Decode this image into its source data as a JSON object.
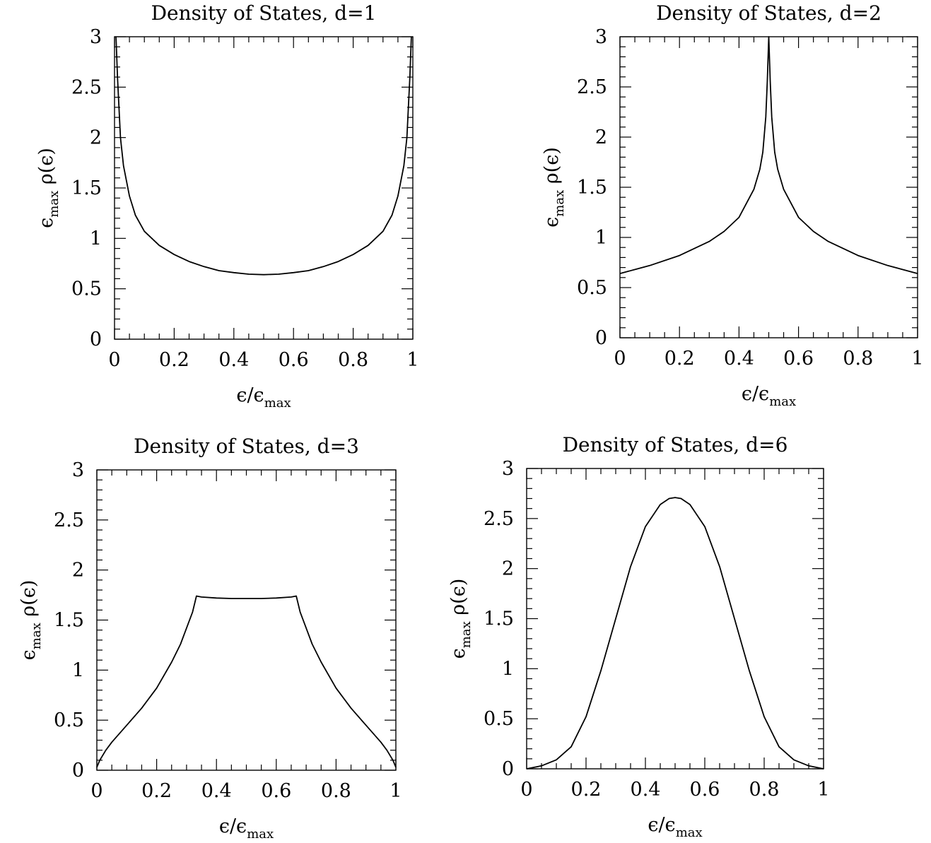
{
  "chart_data": [
    {
      "type": "line",
      "title": "Density of States, d=1",
      "xlabel": "ϵ/ϵmax",
      "ylabel": "ϵmax ρ(ϵ)",
      "xlim": [
        0,
        1
      ],
      "ylim": [
        0,
        3
      ],
      "xticks": [
        "0",
        "0.2",
        "0.4",
        "0.6",
        "0.8",
        "1"
      ],
      "yticks": [
        "0",
        "0.5",
        "1",
        "1.5",
        "2",
        "2.5",
        "3"
      ],
      "series": [
        {
          "x": [
            0.005,
            0.01,
            0.02,
            0.03,
            0.05,
            0.07,
            0.1,
            0.15,
            0.2,
            0.25,
            0.3,
            0.35,
            0.4,
            0.45,
            0.5,
            0.55,
            0.6,
            0.65,
            0.7,
            0.75,
            0.8,
            0.85,
            0.9,
            0.93,
            0.95,
            0.97,
            0.98,
            0.99,
            0.995
          ],
          "y": [
            3.0,
            2.6,
            2.0,
            1.72,
            1.42,
            1.23,
            1.07,
            0.93,
            0.84,
            0.77,
            0.72,
            0.68,
            0.66,
            0.645,
            0.64,
            0.645,
            0.66,
            0.68,
            0.72,
            0.77,
            0.84,
            0.93,
            1.07,
            1.23,
            1.42,
            1.72,
            2.0,
            2.6,
            3.0
          ]
        }
      ]
    },
    {
      "type": "line",
      "title": "Density of States, d=2",
      "xlabel": "ϵ/ϵmax",
      "ylabel": "ϵmax ρ(ϵ)",
      "xlim": [
        0,
        1
      ],
      "ylim": [
        0,
        3
      ],
      "xticks": [
        "0",
        "0.2",
        "0.4",
        "0.6",
        "0.8",
        "1"
      ],
      "yticks": [
        "0",
        "0.5",
        "1",
        "1.5",
        "2",
        "2.5",
        "3"
      ],
      "series": [
        {
          "x": [
            0.0,
            0.1,
            0.2,
            0.3,
            0.35,
            0.4,
            0.45,
            0.47,
            0.48,
            0.49,
            0.495,
            0.5,
            0.505,
            0.51,
            0.52,
            0.53,
            0.55,
            0.6,
            0.65,
            0.7,
            0.8,
            0.9,
            1.0
          ],
          "y": [
            0.64,
            0.72,
            0.82,
            0.96,
            1.06,
            1.2,
            1.48,
            1.68,
            1.85,
            2.2,
            2.55,
            3.0,
            2.55,
            2.2,
            1.85,
            1.68,
            1.48,
            1.2,
            1.06,
            0.96,
            0.82,
            0.72,
            0.64
          ]
        }
      ]
    },
    {
      "type": "line",
      "title": "Density of States, d=3",
      "xlabel": "ϵ/ϵmax",
      "ylabel": "ϵmax ρ(ϵ)",
      "xlim": [
        0,
        1
      ],
      "ylim": [
        0,
        3
      ],
      "xticks": [
        "0",
        "0.2",
        "0.4",
        "0.6",
        "0.8",
        "1"
      ],
      "yticks": [
        "0",
        "0.5",
        "1",
        "1.5",
        "2",
        "2.5",
        "3"
      ],
      "series": [
        {
          "x": [
            0.0,
            0.01,
            0.03,
            0.05,
            0.1,
            0.15,
            0.2,
            0.25,
            0.28,
            0.3,
            0.32,
            0.333,
            0.35,
            0.4,
            0.45,
            0.5,
            0.55,
            0.6,
            0.65,
            0.667,
            0.68,
            0.7,
            0.72,
            0.75,
            0.8,
            0.85,
            0.9,
            0.95,
            0.97,
            0.99,
            1.0
          ],
          "y": [
            0.03,
            0.1,
            0.2,
            0.28,
            0.45,
            0.62,
            0.82,
            1.08,
            1.26,
            1.42,
            1.58,
            1.74,
            1.73,
            1.72,
            1.715,
            1.715,
            1.715,
            1.72,
            1.73,
            1.74,
            1.58,
            1.42,
            1.26,
            1.08,
            0.82,
            0.62,
            0.45,
            0.28,
            0.2,
            0.1,
            0.03
          ]
        }
      ]
    },
    {
      "type": "line",
      "title": "Density of States, d=6",
      "xlabel": "ϵ/ϵmax",
      "ylabel": "ϵmax ρ(ϵ)",
      "xlim": [
        0,
        1
      ],
      "ylim": [
        0,
        3
      ],
      "xticks": [
        "0",
        "0.2",
        "0.4",
        "0.6",
        "0.8",
        "1"
      ],
      "yticks": [
        "0",
        "0.5",
        "1",
        "1.5",
        "2",
        "2.5",
        "3"
      ],
      "series": [
        {
          "x": [
            0.0,
            0.05,
            0.1,
            0.15,
            0.2,
            0.25,
            0.3,
            0.35,
            0.4,
            0.45,
            0.48,
            0.5,
            0.52,
            0.55,
            0.6,
            0.65,
            0.7,
            0.75,
            0.8,
            0.85,
            0.9,
            0.95,
            1.0
          ],
          "y": [
            0.0,
            0.03,
            0.09,
            0.22,
            0.52,
            0.98,
            1.5,
            2.02,
            2.42,
            2.64,
            2.7,
            2.71,
            2.7,
            2.64,
            2.42,
            2.02,
            1.5,
            0.98,
            0.52,
            0.22,
            0.09,
            0.03,
            0.0
          ]
        }
      ]
    }
  ]
}
